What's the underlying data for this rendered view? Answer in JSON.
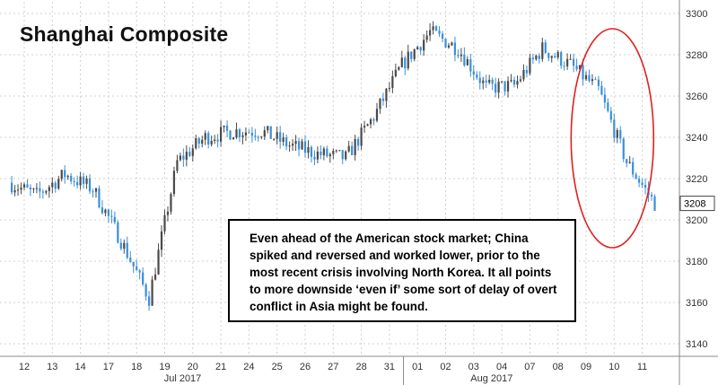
{
  "chart_data": {
    "type": "candlestick",
    "title": "Shanghai Composite",
    "annotation": "Even ahead of the American stock market; China spiked and reversed and worked lower, prior to the most recent crisis involving North Korea. It all points to more downside ‘even if’ some sort of delay of overt conflict in Asia might be found.",
    "ylim": [
      3135,
      3305
    ],
    "y_ticks": [
      3140,
      3160,
      3180,
      3200,
      3220,
      3240,
      3260,
      3280,
      3300
    ],
    "y_axis_side": "right",
    "last_value_label": "3208",
    "x_day_labels": [
      "12",
      "13",
      "14",
      "17",
      "18",
      "19",
      "20",
      "21",
      "24",
      "25",
      "26",
      "27",
      "28",
      "31",
      "01",
      "02",
      "03",
      "04",
      "07",
      "08",
      "09",
      "10",
      "11"
    ],
    "x_month_labels": [
      "Jul 2017",
      "Aug 2017"
    ],
    "x_month_index": [
      5,
      16
    ],
    "gridlines": true,
    "highlight": {
      "shape": "ellipse",
      "color": "#e02020",
      "around_day_index": [
        20,
        22
      ]
    },
    "colors": {
      "up": "#4a4a4a",
      "down": "#3a8fd8",
      "grid": "#d0d0d0",
      "highlight": "#e02020"
    },
    "daily_close": [
      3212,
      3222,
      3215,
      3190,
      3162,
      3228,
      3240,
      3243,
      3243,
      3236,
      3232,
      3230,
      3250,
      3275,
      3291,
      3283,
      3264,
      3265,
      3283,
      3275,
      3263,
      3228,
      3208
    ]
  }
}
